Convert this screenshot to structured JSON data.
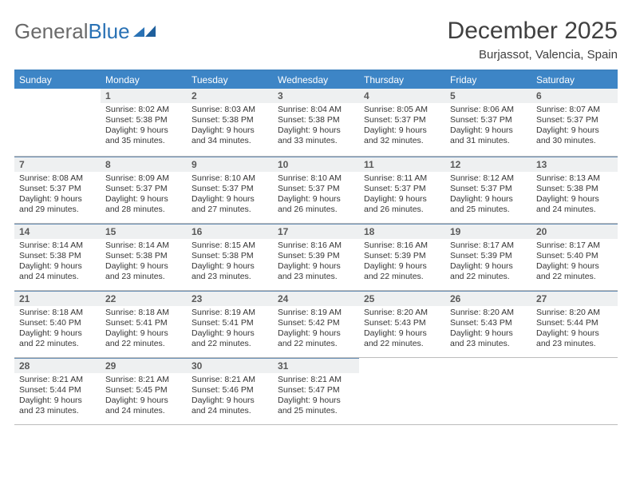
{
  "brand": {
    "part1": "General",
    "part2": "Blue"
  },
  "title": "December 2025",
  "location": "Burjassot, Valencia, Spain",
  "colors": {
    "header_bg": "#3d85c6",
    "header_text": "#ffffff",
    "daynum_bg": "#eef0f1",
    "border": "#bcbcbc"
  },
  "layout": {
    "cols": 7,
    "rows": 5,
    "first_weekday_offset": 1,
    "days_in_month": 31
  },
  "weekday_labels": [
    "Sunday",
    "Monday",
    "Tuesday",
    "Wednesday",
    "Thursday",
    "Friday",
    "Saturday"
  ],
  "days": [
    {
      "n": 1,
      "sunrise": "8:02 AM",
      "sunset": "5:38 PM",
      "daylight": "9 hours and 35 minutes."
    },
    {
      "n": 2,
      "sunrise": "8:03 AM",
      "sunset": "5:38 PM",
      "daylight": "9 hours and 34 minutes."
    },
    {
      "n": 3,
      "sunrise": "8:04 AM",
      "sunset": "5:38 PM",
      "daylight": "9 hours and 33 minutes."
    },
    {
      "n": 4,
      "sunrise": "8:05 AM",
      "sunset": "5:37 PM",
      "daylight": "9 hours and 32 minutes."
    },
    {
      "n": 5,
      "sunrise": "8:06 AM",
      "sunset": "5:37 PM",
      "daylight": "9 hours and 31 minutes."
    },
    {
      "n": 6,
      "sunrise": "8:07 AM",
      "sunset": "5:37 PM",
      "daylight": "9 hours and 30 minutes."
    },
    {
      "n": 7,
      "sunrise": "8:08 AM",
      "sunset": "5:37 PM",
      "daylight": "9 hours and 29 minutes."
    },
    {
      "n": 8,
      "sunrise": "8:09 AM",
      "sunset": "5:37 PM",
      "daylight": "9 hours and 28 minutes."
    },
    {
      "n": 9,
      "sunrise": "8:10 AM",
      "sunset": "5:37 PM",
      "daylight": "9 hours and 27 minutes."
    },
    {
      "n": 10,
      "sunrise": "8:10 AM",
      "sunset": "5:37 PM",
      "daylight": "9 hours and 26 minutes."
    },
    {
      "n": 11,
      "sunrise": "8:11 AM",
      "sunset": "5:37 PM",
      "daylight": "9 hours and 26 minutes."
    },
    {
      "n": 12,
      "sunrise": "8:12 AM",
      "sunset": "5:37 PM",
      "daylight": "9 hours and 25 minutes."
    },
    {
      "n": 13,
      "sunrise": "8:13 AM",
      "sunset": "5:38 PM",
      "daylight": "9 hours and 24 minutes."
    },
    {
      "n": 14,
      "sunrise": "8:14 AM",
      "sunset": "5:38 PM",
      "daylight": "9 hours and 24 minutes."
    },
    {
      "n": 15,
      "sunrise": "8:14 AM",
      "sunset": "5:38 PM",
      "daylight": "9 hours and 23 minutes."
    },
    {
      "n": 16,
      "sunrise": "8:15 AM",
      "sunset": "5:38 PM",
      "daylight": "9 hours and 23 minutes."
    },
    {
      "n": 17,
      "sunrise": "8:16 AM",
      "sunset": "5:39 PM",
      "daylight": "9 hours and 23 minutes."
    },
    {
      "n": 18,
      "sunrise": "8:16 AM",
      "sunset": "5:39 PM",
      "daylight": "9 hours and 22 minutes."
    },
    {
      "n": 19,
      "sunrise": "8:17 AM",
      "sunset": "5:39 PM",
      "daylight": "9 hours and 22 minutes."
    },
    {
      "n": 20,
      "sunrise": "8:17 AM",
      "sunset": "5:40 PM",
      "daylight": "9 hours and 22 minutes."
    },
    {
      "n": 21,
      "sunrise": "8:18 AM",
      "sunset": "5:40 PM",
      "daylight": "9 hours and 22 minutes."
    },
    {
      "n": 22,
      "sunrise": "8:18 AM",
      "sunset": "5:41 PM",
      "daylight": "9 hours and 22 minutes."
    },
    {
      "n": 23,
      "sunrise": "8:19 AM",
      "sunset": "5:41 PM",
      "daylight": "9 hours and 22 minutes."
    },
    {
      "n": 24,
      "sunrise": "8:19 AM",
      "sunset": "5:42 PM",
      "daylight": "9 hours and 22 minutes."
    },
    {
      "n": 25,
      "sunrise": "8:20 AM",
      "sunset": "5:43 PM",
      "daylight": "9 hours and 22 minutes."
    },
    {
      "n": 26,
      "sunrise": "8:20 AM",
      "sunset": "5:43 PM",
      "daylight": "9 hours and 23 minutes."
    },
    {
      "n": 27,
      "sunrise": "8:20 AM",
      "sunset": "5:44 PM",
      "daylight": "9 hours and 23 minutes."
    },
    {
      "n": 28,
      "sunrise": "8:21 AM",
      "sunset": "5:44 PM",
      "daylight": "9 hours and 23 minutes."
    },
    {
      "n": 29,
      "sunrise": "8:21 AM",
      "sunset": "5:45 PM",
      "daylight": "9 hours and 24 minutes."
    },
    {
      "n": 30,
      "sunrise": "8:21 AM",
      "sunset": "5:46 PM",
      "daylight": "9 hours and 24 minutes."
    },
    {
      "n": 31,
      "sunrise": "8:21 AM",
      "sunset": "5:47 PM",
      "daylight": "9 hours and 25 minutes."
    }
  ],
  "labels": {
    "sunrise": "Sunrise",
    "sunset": "Sunset",
    "daylight": "Daylight"
  }
}
